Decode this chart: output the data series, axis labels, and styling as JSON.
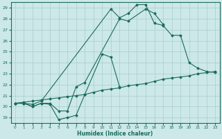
{
  "xlabel": "Humidex (Indice chaleur)",
  "xlim": [
    -0.5,
    23.5
  ],
  "ylim": [
    18.5,
    29.5
  ],
  "xticks": [
    0,
    1,
    2,
    3,
    4,
    5,
    6,
    7,
    8,
    9,
    10,
    11,
    12,
    13,
    14,
    15,
    16,
    17,
    18,
    19,
    20,
    21,
    22,
    23
  ],
  "yticks": [
    19,
    20,
    21,
    22,
    23,
    24,
    25,
    26,
    27,
    28,
    29
  ],
  "bg_color": "#cce8e8",
  "grid_color": "#aacccc",
  "line_color": "#1a6b5a",
  "series1_x": [
    0,
    1,
    2,
    3,
    4,
    5,
    6,
    7,
    8,
    10,
    11,
    12
  ],
  "series1_y": [
    20.3,
    20.3,
    20.0,
    20.3,
    20.2,
    18.8,
    19.0,
    19.2,
    21.1,
    24.8,
    24.5,
    21.8
  ],
  "series2_x": [
    0,
    1,
    2,
    3,
    4,
    5,
    6,
    7,
    8,
    12,
    13,
    15,
    16,
    17
  ],
  "series2_y": [
    20.3,
    20.3,
    20.0,
    20.3,
    20.3,
    19.6,
    19.6,
    21.8,
    22.2,
    28.0,
    27.8,
    28.9,
    28.5,
    27.5
  ],
  "series3_x": [
    0,
    1,
    2,
    3,
    11,
    12,
    13,
    14,
    15,
    16,
    17,
    18,
    19,
    20,
    21,
    22,
    23
  ],
  "series3_y": [
    20.3,
    20.3,
    20.2,
    20.5,
    28.9,
    28.1,
    28.5,
    29.3,
    29.3,
    27.6,
    27.4,
    26.5,
    26.5,
    24.0,
    23.5,
    23.2,
    23.1
  ],
  "series4_x": [
    0,
    1,
    2,
    3,
    4,
    5,
    6,
    7,
    8,
    9,
    10,
    11,
    12,
    13,
    14,
    15,
    16,
    17,
    18,
    19,
    20,
    21,
    22,
    23
  ],
  "series4_y": [
    20.3,
    20.4,
    20.5,
    20.6,
    20.7,
    20.8,
    20.9,
    21.0,
    21.1,
    21.3,
    21.5,
    21.6,
    21.7,
    21.9,
    22.0,
    22.1,
    22.3,
    22.5,
    22.6,
    22.7,
    22.8,
    23.0,
    23.1,
    23.2
  ]
}
